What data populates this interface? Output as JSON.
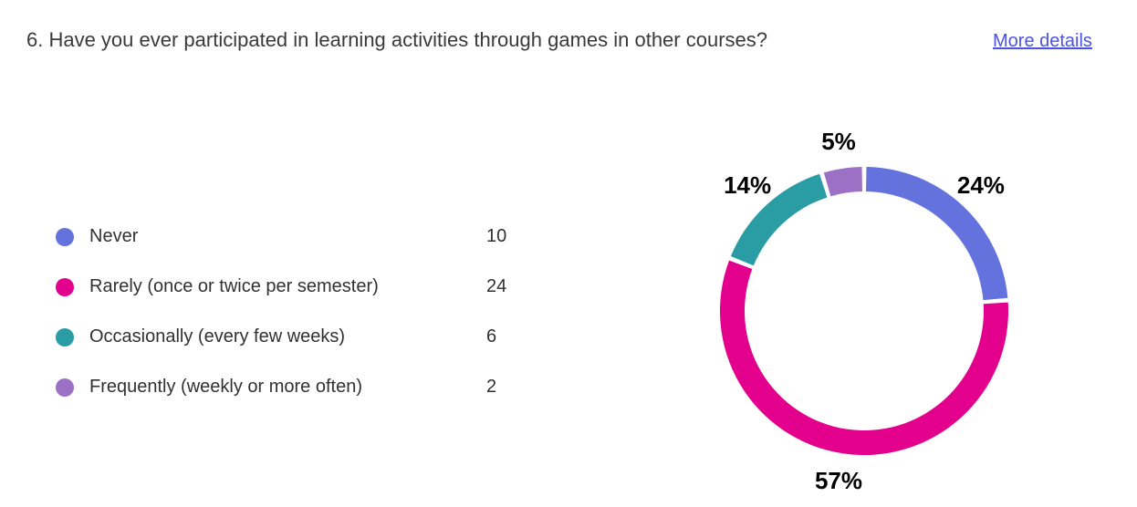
{
  "header": {
    "question_title": "6. Have you ever participated in learning activities through games in other courses?",
    "more_details_label": "More details"
  },
  "chart_data": {
    "type": "pie",
    "donut": true,
    "legend_position": "left",
    "start_angle_deg": 0,
    "direction": "clockwise",
    "series": [
      {
        "label": "Never",
        "value": 10,
        "percent": "24%",
        "color": "#6372dc"
      },
      {
        "label": "Rarely (once or twice per semester)",
        "value": 24,
        "percent": "57%",
        "color": "#e3008c"
      },
      {
        "label": "Occasionally (every few weeks)",
        "value": 6,
        "percent": "14%",
        "color": "#2a9ca4"
      },
      {
        "label": "Frequently (weekly or more often)",
        "value": 2,
        "percent": "5%",
        "color": "#9b70c5"
      }
    ]
  }
}
